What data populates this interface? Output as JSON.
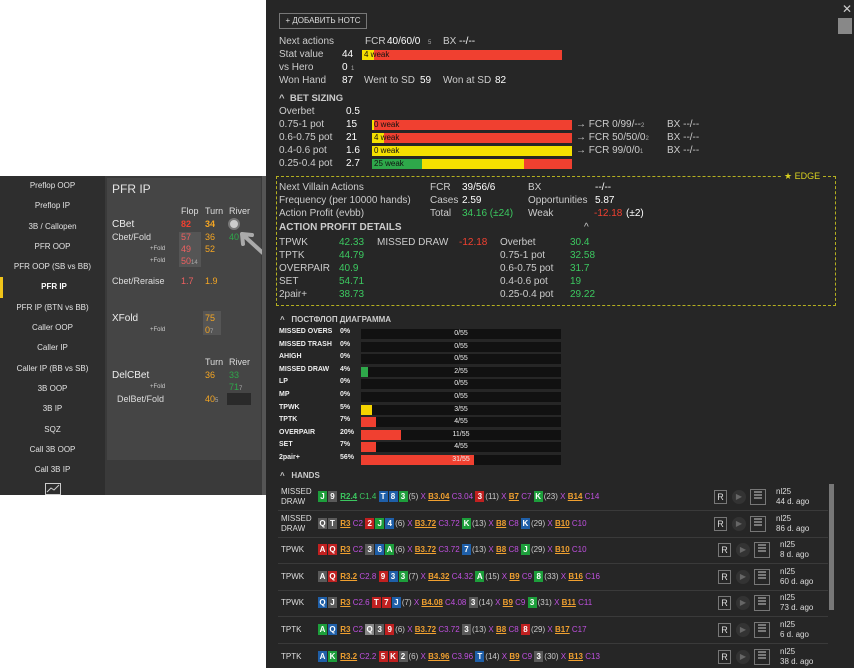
{
  "left_nav": {
    "items": [
      "Preflop OOP",
      "Preflop IP",
      "3B / Callopen",
      "PFR OOP",
      "PFR OOP (SB vs BB)",
      "PFR IP",
      "PFR IP (BTN vs BB)",
      "Caller OOP",
      "Caller IP",
      "Caller IP (BB vs SB)",
      "3B OOP",
      "3B IP",
      "SQZ",
      "Call 3B OOP",
      "Call 3B IP"
    ],
    "active": "PFR IP",
    "chart_icon": "line-chart-icon"
  },
  "pfr": {
    "title": "PFR IP",
    "headers": {
      "flop": "Flop",
      "turn": "Turn",
      "river": "River"
    },
    "cbet": {
      "label": "CBet",
      "flop": "82",
      "turn": "34",
      "river_icon": "clock-icon"
    },
    "cbet_fold": {
      "label": "Cbet/Fold",
      "flop": "57",
      "turn": "36",
      "river": "40"
    },
    "fold1": {
      "label": "+Fold",
      "flop": "49",
      "turn": "52"
    },
    "fold2": {
      "label": "+Fold",
      "flop": "50",
      "flop_sub": "14"
    },
    "cbet_reraise": {
      "label": "Cbet/Reraise",
      "flop": "1.7",
      "turn": "1.9"
    },
    "xfold": {
      "label": "XFold",
      "turn": "75",
      "fold_label": "+Fold",
      "fold_turn": "0",
      "fold_turn_sub": "7"
    },
    "delcbet": {
      "headers": {
        "turn": "Turn",
        "river": "River"
      },
      "label": "DelCBet",
      "turn": "36",
      "river": "33",
      "fold_label": "+Fold",
      "fold_river": "71",
      "fold_river_sub": "7",
      "delbet_fold_label": "DelBet/Fold",
      "delbet_fold_turn": "40",
      "delbet_fold_turn_sub": "5"
    }
  },
  "notes_button": "+ ДОБАВИТЬ НОТС",
  "stats": {
    "next_actions_label": "Next actions",
    "fcr_label": "FCR",
    "fcr_value": "40/60/0",
    "fcr_sub": "5",
    "bx_label": "BX",
    "bx_value": "--/--",
    "stat_value_label": "Stat value",
    "stat_value": "44",
    "stat_bar_label": "4 weak",
    "vs_hero_label": "vs Hero",
    "vs_hero_value": "0",
    "vs_hero_sub": "1",
    "won_hand_label": "Won Hand",
    "won_hand_value": "87",
    "went_sd_label": "Went to SD",
    "went_sd_value": "59",
    "won_sd_label": "Won at SD",
    "won_sd_value": "82",
    "stat_bar_fill": 0.06
  },
  "bet_sizing": {
    "title": "BET SIZING",
    "overbet_label": "Overbet",
    "overbet_value": "0.5",
    "rows": [
      {
        "label": "0.75-1 pot",
        "value": "15",
        "bar": "0 weak",
        "fill": 0.0,
        "color": "#f5e000",
        "fcr": "→ FCR 0/99/--",
        "fcr_sub": "2",
        "bx": "BX --/--"
      },
      {
        "label": "0.6-0.75 pot",
        "value": "21",
        "bar": "4 weak",
        "fill": 0.06,
        "color": "#f5e000",
        "fcr": "→ FCR 50/50/0",
        "fcr_sub": "2",
        "bx": "BX --/--"
      },
      {
        "label": "0.4-0.6 pot",
        "value": "1.6",
        "bar": "0 weak",
        "fill": 1.0,
        "color": "#f5e000",
        "fcr": "→ FCR 99/0/0",
        "fcr_sub": "1",
        "bx": "BX --/--"
      },
      {
        "label": "0.25-0.4 pot",
        "value": "2.7",
        "bar": "25 weak",
        "fill": 0.25,
        "color": "#2ea84a",
        "fill2": 0.76,
        "color2": "#f5e000"
      }
    ]
  },
  "edge": {
    "badge": "★ EDGE",
    "next_villain_label": "Next Villain Actions",
    "fcr_label": "FCR",
    "fcr_value": "39/56/6",
    "bx_label": "BX",
    "bx_value": "--/--",
    "freq_label": "Frequency (per 10000 hands)",
    "cases_label": "Cases",
    "cases_value": "2.59",
    "opp_label": "Opportunities",
    "opp_value": "5.87",
    "profit_label": "Action Profit (evbb)",
    "total_label": "Total",
    "total_value": "34.16 (±24)",
    "weak_label": "Weak",
    "weak_value": "-12.18",
    "weak_pm": "(±2)",
    "details_title": "ACTION PROFIT DETAILS",
    "details": [
      {
        "l1": "TPWK",
        "v1": "42.33",
        "l2": "MISSED DRAW",
        "v2": "-12.18",
        "l3": "Overbet",
        "v3": "30.4"
      },
      {
        "l1": "TPTK",
        "v1": "44.79",
        "l2": "",
        "v2": "",
        "l3": "0.75-1 pot",
        "v3": "32.58"
      },
      {
        "l1": "OVERPAIR",
        "v1": "40.9",
        "l2": "",
        "v2": "",
        "l3": "0.6-0.75 pot",
        "v3": "31.7"
      },
      {
        "l1": "SET",
        "v1": "54.71",
        "l2": "",
        "v2": "",
        "l3": "0.4-0.6 pot",
        "v3": "19"
      },
      {
        "l1": "2pair+",
        "v1": "38.73",
        "l2": "",
        "v2": "",
        "l3": "0.25-0.4 pot",
        "v3": "29.22"
      }
    ]
  },
  "postflop": {
    "title": "ПОСТФЛОП ДИАГРАММА",
    "rows": [
      {
        "label": "MISSED OVERS",
        "pct": "0%",
        "count": "0/55",
        "fill": 0,
        "color": "#f04030"
      },
      {
        "label": "MISSED TRASH",
        "pct": "0%",
        "count": "0/55",
        "fill": 0,
        "color": "#f04030"
      },
      {
        "label": "AHIGH",
        "pct": "0%",
        "count": "0/55",
        "fill": 0,
        "color": "#f04030"
      },
      {
        "label": "MISSED DRAW",
        "pct": "4%",
        "count": "2/55",
        "fill": 0.036,
        "color": "#2ea84a"
      },
      {
        "label": "LP",
        "pct": "0%",
        "count": "0/55",
        "fill": 0,
        "color": "#f04030"
      },
      {
        "label": "MP",
        "pct": "0%",
        "count": "0/55",
        "fill": 0,
        "color": "#f04030"
      },
      {
        "label": "TPWK",
        "pct": "5%",
        "count": "3/55",
        "fill": 0.055,
        "color": "#f5d400"
      },
      {
        "label": "TPTK",
        "pct": "7%",
        "count": "4/55",
        "fill": 0.073,
        "color": "#f04030"
      },
      {
        "label": "OVERPAIR",
        "pct": "20%",
        "count": "11/55",
        "fill": 0.2,
        "color": "#f04030"
      },
      {
        "label": "SET",
        "pct": "7%",
        "count": "4/55",
        "fill": 0.073,
        "color": "#f04030"
      },
      {
        "label": "2pair+",
        "pct": "56%",
        "count": "31/55",
        "fill": 0.564,
        "color": "#f04030"
      }
    ]
  },
  "hands": {
    "title": "HANDS",
    "rows": [
      {
        "type": "MISSED DRAW",
        "cards": [
          [
            "J",
            "cg"
          ],
          [
            "9",
            "ck"
          ]
        ],
        "a1": "R2.4",
        "a1c": "C1.4",
        "flop": [
          [
            "T",
            "cb"
          ],
          [
            "8",
            "cb"
          ],
          [
            "3",
            "cg"
          ]
        ],
        "fn": "(5)",
        "x1": "X",
        "b1": "B3.04",
        "b1c": "C3.04",
        "turn": [
          [
            "3",
            "cr"
          ]
        ],
        "tn": "(11)",
        "x2": "X",
        "b2": "B7",
        "b2c": "C7",
        "river": [
          [
            "K",
            "cg"
          ]
        ],
        "rn": "(23)",
        "x3": "X",
        "b3": "B14",
        "b3c": "C14",
        "stake": "nl25",
        "ago": "44 d. ago"
      },
      {
        "type": "MISSED DRAW",
        "cards": [
          [
            "Q",
            "ck"
          ],
          [
            "T",
            "ck"
          ]
        ],
        "a1": "R3",
        "a1c": "C2",
        "flop": [
          [
            "2",
            "cr"
          ],
          [
            "J",
            "cg"
          ],
          [
            "4",
            "cb"
          ]
        ],
        "fn": "(6)",
        "x1": "X",
        "b1": "B3.72",
        "b1c": "C3.72",
        "turn": [
          [
            "K",
            "cg"
          ]
        ],
        "tn": "(13)",
        "x2": "X",
        "b2": "B8",
        "b2c": "C8",
        "river": [
          [
            "K",
            "cb"
          ]
        ],
        "rn": "(29)",
        "x3": "X",
        "b3": "B10",
        "b3c": "C10",
        "stake": "nl25",
        "ago": "86 d. ago"
      },
      {
        "type": "TPWK",
        "cards": [
          [
            "A",
            "cr"
          ],
          [
            "Q",
            "cr"
          ]
        ],
        "a1": "R3",
        "a1c": "C2",
        "flop": [
          [
            "3",
            "ck"
          ],
          [
            "6",
            "cb"
          ],
          [
            "A",
            "cg"
          ]
        ],
        "fn": "(6)",
        "x1": "X",
        "b1": "B3.72",
        "b1c": "C3.72",
        "turn": [
          [
            "7",
            "cb"
          ]
        ],
        "tn": "(13)",
        "x2": "X",
        "b2": "B8",
        "b2c": "C8",
        "river": [
          [
            "J",
            "cg"
          ]
        ],
        "rn": "(29)",
        "x3": "X",
        "b3": "B10",
        "b3c": "C10",
        "stake": "nl25",
        "ago": "8 d. ago"
      },
      {
        "type": "TPWK",
        "cards": [
          [
            "A",
            "ck"
          ],
          [
            "Q",
            "cr"
          ]
        ],
        "a1": "R3.2",
        "a1c": "C2.8",
        "flop": [
          [
            "9",
            "cr"
          ],
          [
            "3",
            "cb"
          ],
          [
            "3",
            "cg"
          ]
        ],
        "fn": "(7)",
        "x1": "X",
        "b1": "B4.32",
        "b1c": "C4.32",
        "turn": [
          [
            "A",
            "cg"
          ]
        ],
        "tn": "(15)",
        "x2": "X",
        "b2": "B9",
        "b2c": "C9",
        "river": [
          [
            "8",
            "cg"
          ]
        ],
        "rn": "(33)",
        "x3": "X",
        "b3": "B16",
        "b3c": "C16",
        "stake": "nl25",
        "ago": "60 d. ago"
      },
      {
        "type": "TPWK",
        "cards": [
          [
            "Q",
            "cb"
          ],
          [
            "J",
            "ck"
          ]
        ],
        "a1": "R3",
        "a1c": "C2.6",
        "flop": [
          [
            "T",
            "cr"
          ],
          [
            "7",
            "cr"
          ],
          [
            "J",
            "cb"
          ]
        ],
        "fn": "(7)",
        "x1": "X",
        "b1": "B4.08",
        "b1c": "C4.08",
        "turn": [
          [
            "3",
            "ck"
          ]
        ],
        "tn": "(14)",
        "x2": "X",
        "b2": "B9",
        "b2c": "C9",
        "river": [
          [
            "3",
            "cg"
          ]
        ],
        "rn": "(31)",
        "x3": "X",
        "b3": "B11",
        "b3c": "C11",
        "stake": "nl25",
        "ago": "73 d. ago"
      },
      {
        "type": "TPTK",
        "cards": [
          [
            "A",
            "cg"
          ],
          [
            "Q",
            "cb"
          ]
        ],
        "a1": "R3",
        "a1c": "C2",
        "flop": [
          [
            "Q",
            "cw"
          ],
          [
            "3",
            "ck"
          ],
          [
            "9",
            "cr"
          ]
        ],
        "fn": "(6)",
        "x1": "X",
        "b1": "B3.72",
        "b1c": "C3.72",
        "turn": [
          [
            "3",
            "ck"
          ]
        ],
        "tn": "(13)",
        "x2": "X",
        "b2": "B8",
        "b2c": "C8",
        "river": [
          [
            "8",
            "cr"
          ]
        ],
        "rn": "(29)",
        "x3": "X",
        "b3": "B17",
        "b3c": "C17",
        "stake": "nl25",
        "ago": "6 d. ago"
      },
      {
        "type": "TPTK",
        "cards": [
          [
            "A",
            "cb"
          ],
          [
            "K",
            "cg"
          ]
        ],
        "a1": "R3.2",
        "a1c": "C2.2",
        "flop": [
          [
            "5",
            "cr"
          ],
          [
            "K",
            "cr"
          ],
          [
            "2",
            "ck"
          ]
        ],
        "fn": "(6)",
        "x1": "X",
        "b1": "B3.96",
        "b1c": "C3.96",
        "turn": [
          [
            "T",
            "cb"
          ]
        ],
        "tn": "(14)",
        "x2": "X",
        "b2": "B9",
        "b2c": "C9",
        "river": [
          [
            "3",
            "ck"
          ]
        ],
        "rn": "(30)",
        "x3": "X",
        "b3": "B13",
        "b3c": "C13",
        "stake": "nl25",
        "ago": "38 d. ago"
      }
    ],
    "r_label": "R",
    "play_icon": "play-icon",
    "menu_icon": "menu-lines-icon"
  },
  "window": {
    "close_icon": "close-icon",
    "pin_icon": "pin-icon"
  }
}
